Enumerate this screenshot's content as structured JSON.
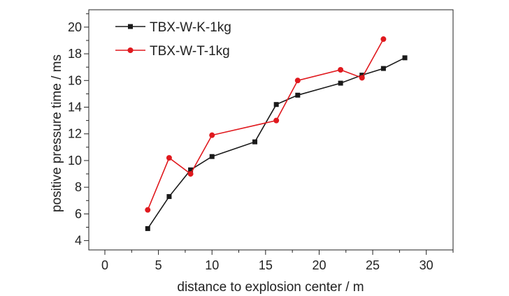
{
  "chart_data": {
    "type": "line",
    "title": "",
    "xlabel": "distance to explosion center / m",
    "ylabel": "positive pressure time / ms",
    "xlim": [
      -1.5,
      32.5
    ],
    "ylim": [
      3.3,
      21.3
    ],
    "xticks": [
      0,
      5,
      10,
      15,
      20,
      25,
      30
    ],
    "yticks": [
      4,
      6,
      8,
      10,
      12,
      14,
      16,
      18,
      20
    ],
    "x_minor_step": 2.5,
    "y_minor_step": 1,
    "grid": false,
    "legend_position": "top-left",
    "series": [
      {
        "name": "TBX-W-K-1kg",
        "color": "#1a1a1a",
        "marker": "square",
        "points": [
          [
            4,
            4.9
          ],
          [
            6,
            7.3
          ],
          [
            8,
            9.3
          ],
          [
            10,
            10.3
          ],
          [
            14,
            11.4
          ],
          [
            16,
            14.2
          ],
          [
            18,
            14.9
          ],
          [
            22,
            15.8
          ],
          [
            24,
            16.4
          ],
          [
            26,
            16.9
          ],
          [
            28,
            17.7
          ]
        ]
      },
      {
        "name": "TBX-W-T-1kg",
        "color": "#e0191e",
        "marker": "circle",
        "points": [
          [
            4,
            6.3
          ],
          [
            6,
            10.2
          ],
          [
            8,
            9.0
          ],
          [
            10,
            11.9
          ],
          [
            16,
            13.0
          ],
          [
            18,
            16.0
          ],
          [
            22,
            16.8
          ],
          [
            24,
            16.2
          ],
          [
            26,
            19.1
          ]
        ]
      }
    ]
  }
}
